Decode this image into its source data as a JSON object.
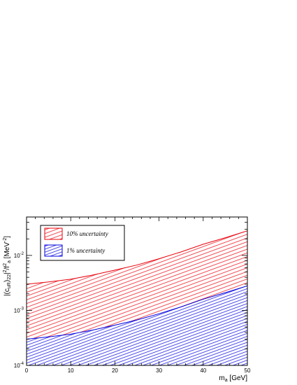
{
  "chart_data": {
    "type": "area",
    "xlabel": "m_a [GeV]",
    "ylabel": "|(c_uR)_22|^2/f_a^2 [MeV^-2]",
    "xlim": [
      0,
      50
    ],
    "ylim": [
      0.0001,
      0.05
    ],
    "yscale": "log",
    "grid": false,
    "legend_position": "top-left",
    "x_ticks": [
      0,
      10,
      20,
      30,
      40,
      50
    ],
    "x_tick_labels": [
      "0",
      "10",
      "20",
      "30",
      "40",
      "50"
    ],
    "y_ticks": [
      0.0001,
      0.001,
      0.01
    ],
    "y_tick_labels": [
      "10",
      "10",
      "10"
    ],
    "y_tick_exponents": [
      "-4",
      "-3",
      "-2"
    ],
    "x": [
      0,
      5,
      10,
      15,
      20,
      25,
      30,
      35,
      40,
      45,
      50
    ],
    "series": [
      {
        "name": "10% uncertainty",
        "color": "#e8000b",
        "lower": [
          0.0003,
          0.00033,
          0.00037,
          0.00044,
          0.00054,
          0.00067,
          0.00087,
          0.00116,
          0.0016,
          0.0021,
          0.0028
        ],
        "upper": [
          0.003,
          0.0033,
          0.0037,
          0.0044,
          0.0054,
          0.0067,
          0.0087,
          0.0116,
          0.016,
          0.021,
          0.028
        ]
      },
      {
        "name": "1% uncertainty",
        "color": "#0000e0",
        "lower": [
          0.0001,
          0.0001,
          0.0001,
          0.0001,
          0.0001,
          0.0001,
          0.0001,
          0.0001,
          0.0001,
          0.0001,
          0.0001
        ],
        "upper": [
          0.0003,
          0.00033,
          0.00037,
          0.00044,
          0.00054,
          0.00067,
          0.00087,
          0.00116,
          0.0016,
          0.0021,
          0.0028
        ]
      }
    ]
  }
}
